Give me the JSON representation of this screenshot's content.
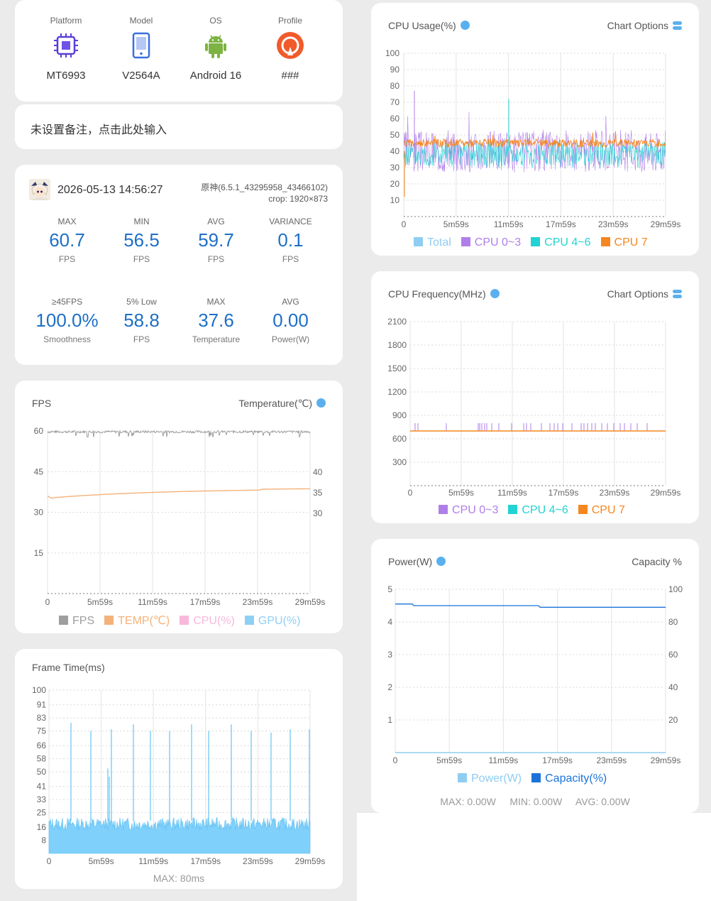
{
  "device": {
    "items": [
      {
        "label": "Platform",
        "value": "MT6993",
        "icon": "cpu-chip-icon"
      },
      {
        "label": "Model",
        "value": "V2564A",
        "icon": "phone-icon"
      },
      {
        "label": "OS",
        "value": "Android 16",
        "icon": "android-icon"
      },
      {
        "label": "Profile",
        "value": "###",
        "icon": "profile-icon"
      }
    ]
  },
  "note": {
    "placeholder": "未设置备注，点击此处输入"
  },
  "session": {
    "datetime": "2026-05-13 14:56:27",
    "app": "原神(6.5.1_43295958_43466102)",
    "crop": "crop: 1920×873",
    "stats": [
      {
        "label": "MAX",
        "value": "60.7",
        "unit": "FPS"
      },
      {
        "label": "MIN",
        "value": "56.5",
        "unit": "FPS"
      },
      {
        "label": "AVG",
        "value": "59.7",
        "unit": "FPS"
      },
      {
        "label": "VARIANCE",
        "value": "0.1",
        "unit": "FPS"
      },
      {
        "label": "≥45FPS",
        "value": "100.0%",
        "unit": "Smoothness"
      },
      {
        "label": "5% Low",
        "value": "58.8",
        "unit": "FPS"
      },
      {
        "label": "MAX",
        "value": "37.6",
        "unit": "Temperature"
      },
      {
        "label": "AVG",
        "value": "0.00",
        "unit": "Power(W)"
      }
    ]
  },
  "fps_chart": {
    "title": "FPS",
    "title_right": "Temperature(℃)",
    "y_ticks": [
      "60",
      "45",
      "30",
      "15"
    ],
    "y_right_ticks": [
      "40",
      "35",
      "30"
    ],
    "x_ticks": [
      "0",
      "5m59s",
      "11m59s",
      "17m59s",
      "23m59s",
      "29m59s"
    ],
    "legend": [
      {
        "name": "FPS",
        "color": "#9e9e9e"
      },
      {
        "name": "TEMP(℃)",
        "color": "#f4b27a"
      },
      {
        "name": "CPU(%)",
        "color": "#f7b8dc"
      },
      {
        "name": "GPU(%)",
        "color": "#8ed0f5"
      }
    ]
  },
  "frame_chart": {
    "title": "Frame Time(ms)",
    "y_ticks": [
      "100",
      "91",
      "83",
      "75",
      "66",
      "58",
      "50",
      "41",
      "33",
      "25",
      "16",
      "8"
    ],
    "x_ticks": [
      "0",
      "5m59s",
      "11m59s",
      "17m59s",
      "23m59s",
      "29m59s"
    ],
    "footer": "MAX: 80ms"
  },
  "cpu_usage_chart": {
    "title": "CPU Usage(%)",
    "options": "Chart Options",
    "y_ticks": [
      "100",
      "90",
      "80",
      "70",
      "60",
      "50",
      "40",
      "30",
      "20",
      "10"
    ],
    "x_ticks": [
      "0",
      "5m59s",
      "11m59s",
      "17m59s",
      "23m59s",
      "29m59s"
    ],
    "legend": [
      {
        "name": "Total",
        "color": "#8fcdf3"
      },
      {
        "name": "CPU 0~3",
        "color": "#b07ee8"
      },
      {
        "name": "CPU 4~6",
        "color": "#22d3d3"
      },
      {
        "name": "CPU 7",
        "color": "#f6861f"
      }
    ]
  },
  "cpu_freq_chart": {
    "title": "CPU Frequency(MHz)",
    "options": "Chart Options",
    "y_ticks": [
      "2100",
      "1800",
      "1500",
      "1200",
      "900",
      "600",
      "300"
    ],
    "x_ticks": [
      "0",
      "5m59s",
      "11m59s",
      "17m59s",
      "23m59s",
      "29m59s"
    ],
    "legend": [
      {
        "name": "CPU 0~3",
        "color": "#b07ee8"
      },
      {
        "name": "CPU 4~6",
        "color": "#22d3d3"
      },
      {
        "name": "CPU 7",
        "color": "#f6861f"
      }
    ]
  },
  "power_chart": {
    "title": "Power(W)",
    "title_right": "Capacity %",
    "y_ticks": [
      "5",
      "4",
      "3",
      "2",
      "1"
    ],
    "y_right_ticks": [
      "100",
      "80",
      "60",
      "40",
      "20"
    ],
    "x_ticks": [
      "0",
      "5m59s",
      "11m59s",
      "17m59s",
      "23m59s",
      "29m59s"
    ],
    "legend": [
      {
        "name": "Power(W)",
        "color": "#8fcdf3"
      },
      {
        "name": "Capacity(%)",
        "color": "#1a73d9"
      }
    ],
    "footer": {
      "max": "MAX: 0.00W",
      "min": "MIN: 0.00W",
      "avg": "AVG: 0.00W"
    }
  }
}
